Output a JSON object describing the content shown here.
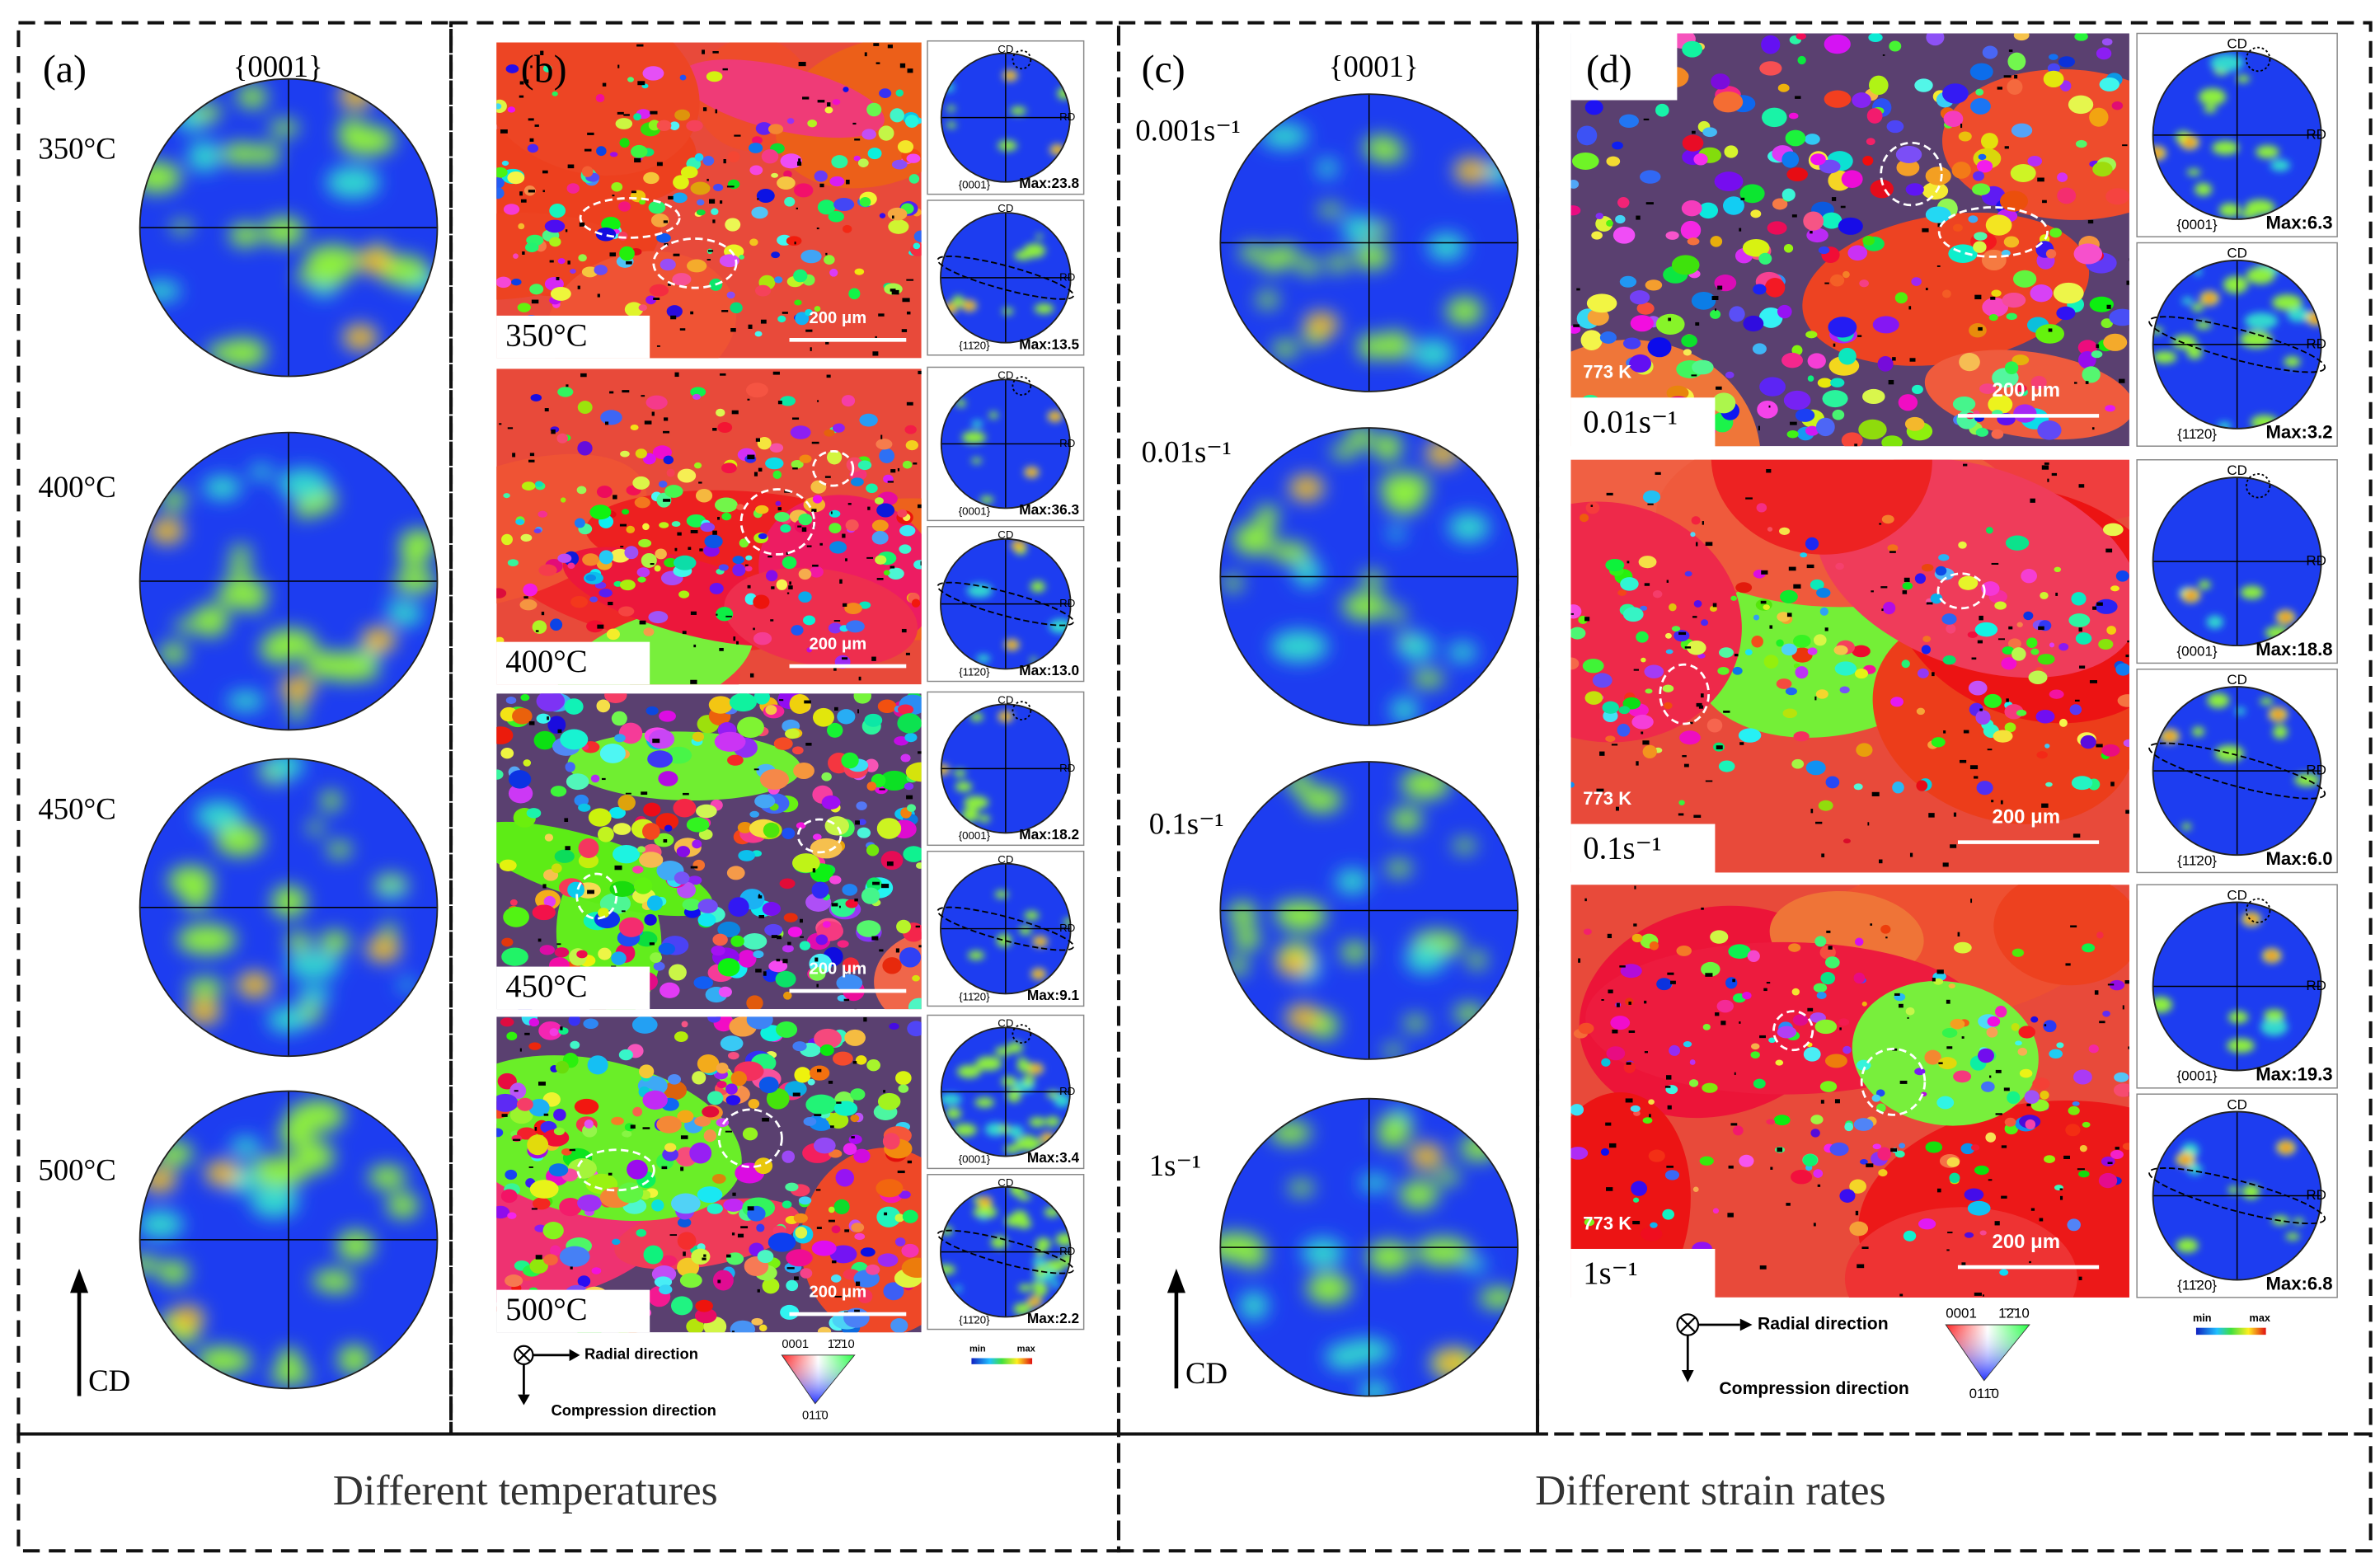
{
  "panel_a": {
    "label": "(a)",
    "plane": "{0001}",
    "axis": "CD",
    "rows": [
      "350°C",
      "400°C",
      "450°C",
      "500°C"
    ]
  },
  "panel_b": {
    "label": "(b)",
    "rows": [
      {
        "condition": "350°C",
        "scale_bar": "200 μm",
        "pf_0001_max": "Max:23.8",
        "pf_1120_max": "Max:13.5"
      },
      {
        "condition": "400°C",
        "scale_bar": "200 μm",
        "pf_0001_max": "Max:36.3",
        "pf_1120_max": "Max:13.0"
      },
      {
        "condition": "450°C",
        "scale_bar": "200 μm",
        "pf_0001_max": "Max:18.2",
        "pf_1120_max": "Max:9.1"
      },
      {
        "condition": "500°C",
        "scale_bar": "200 μm",
        "pf_0001_max": "Max:3.4",
        "pf_1120_max": "Max:2.2"
      }
    ]
  },
  "panel_c": {
    "label": "(c)",
    "plane": "{0001}",
    "axis": "CD",
    "rows": [
      "0.001s⁻¹",
      "0.01s⁻¹",
      "0.1s⁻¹",
      "1s⁻¹"
    ]
  },
  "panel_d": {
    "label": "(d)",
    "temperature": "773 K",
    "rows": [
      {
        "condition": "0.01s⁻¹",
        "scale_bar": "200 μm",
        "pf_0001_max": "Max:6.3",
        "pf_1120_max": "Max:3.2"
      },
      {
        "condition": "0.1s⁻¹",
        "scale_bar": "200 μm",
        "pf_0001_max": "Max:18.8",
        "pf_1120_max": "Max:6.0"
      },
      {
        "condition": "1s⁻¹",
        "scale_bar": "200 μm",
        "pf_0001_max": "Max:19.3",
        "pf_1120_max": "Max:6.8"
      }
    ]
  },
  "pole_figure_labels": {
    "cd": "CD",
    "rd": "RD",
    "basal": "{0001}",
    "prismatic": "{11̄20}"
  },
  "legend": {
    "radial": "Radial direction",
    "compression": "Compression direction",
    "ipf_corners": [
      "0001",
      "1̄2̄10",
      "011̄0"
    ],
    "color_min": "min",
    "color_max": "max"
  },
  "captions": [
    "Different temperatures",
    "Different strain rates"
  ]
}
